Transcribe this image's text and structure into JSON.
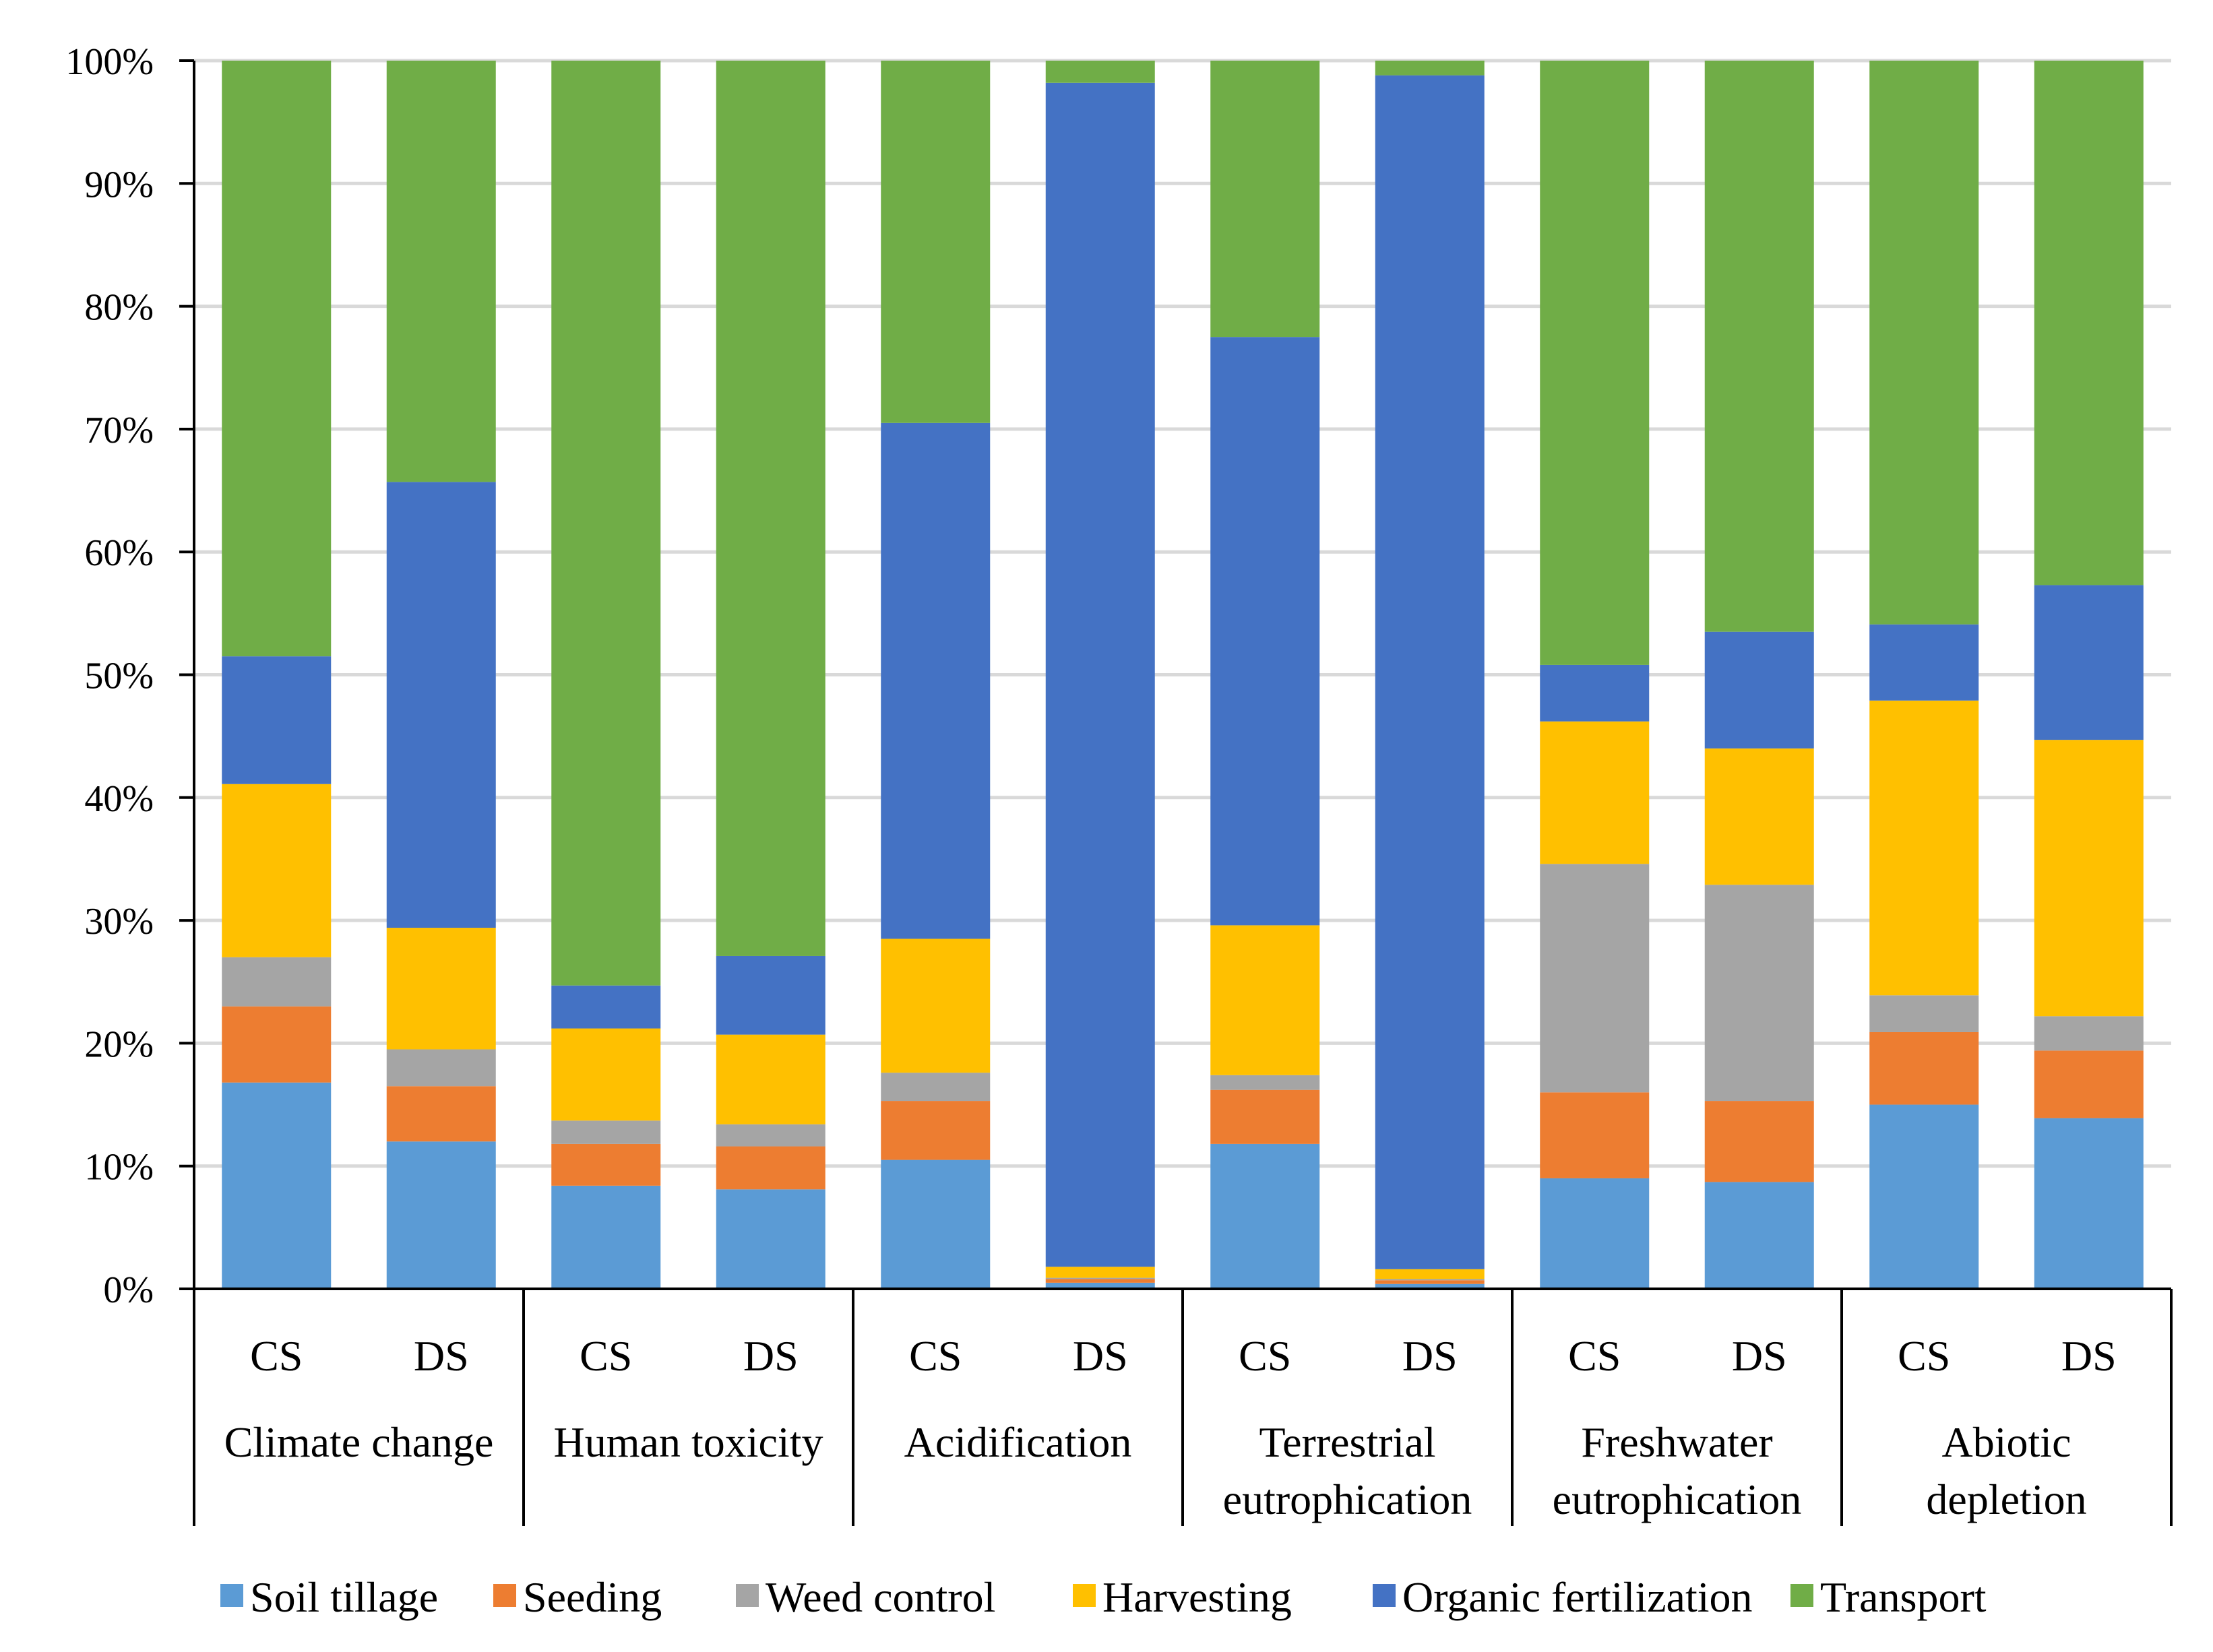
{
  "chart_data": {
    "type": "bar",
    "stacked": true,
    "normalized": true,
    "ylim": [
      0,
      100
    ],
    "yticks": [
      "0%",
      "10%",
      "20%",
      "30%",
      "40%",
      "50%",
      "60%",
      "70%",
      "80%",
      "90%",
      "100%"
    ],
    "grid": true,
    "legend_position": "bottom",
    "groups": [
      {
        "label": "Climate change",
        "categories": [
          "CS",
          "DS"
        ]
      },
      {
        "label": "Human toxicity",
        "categories": [
          "CS",
          "DS"
        ]
      },
      {
        "label": "Acidification",
        "categories": [
          "CS",
          "DS"
        ]
      },
      {
        "label": "Terrestrial eutrophication",
        "categories": [
          "CS",
          "DS"
        ]
      },
      {
        "label": "Freshwater eutrophication",
        "categories": [
          "CS",
          "DS"
        ]
      },
      {
        "label": "Abiotic depletion",
        "categories": [
          "CS",
          "DS"
        ]
      }
    ],
    "series": [
      {
        "name": "Soil tillage",
        "color": "#5B9BD5",
        "values": [
          16.8,
          12.0,
          8.4,
          8.1,
          10.5,
          0.5,
          11.8,
          0.4,
          9.0,
          8.7,
          15.0,
          13.9
        ]
      },
      {
        "name": "Seeding",
        "color": "#ED7D31",
        "values": [
          6.2,
          4.5,
          3.4,
          3.5,
          4.8,
          0.3,
          4.4,
          0.3,
          7.0,
          6.6,
          5.9,
          5.5
        ]
      },
      {
        "name": "Weed control",
        "color": "#A5A5A5",
        "values": [
          4.0,
          3.0,
          1.9,
          1.8,
          2.3,
          0.1,
          1.2,
          0.1,
          18.6,
          17.6,
          3.0,
          2.8
        ]
      },
      {
        "name": "Harvesting",
        "color": "#FFC000",
        "values": [
          14.1,
          9.9,
          7.5,
          7.3,
          10.9,
          0.9,
          12.2,
          0.8,
          11.6,
          11.1,
          24.0,
          22.5
        ]
      },
      {
        "name": "Organic fertilization",
        "color": "#4472C4",
        "values": [
          10.4,
          36.3,
          3.5,
          6.4,
          42.0,
          96.4,
          47.9,
          97.2,
          4.6,
          9.5,
          6.2,
          12.6
        ]
      },
      {
        "name": "Transport",
        "color": "#70AD47",
        "values": [
          48.5,
          34.3,
          75.3,
          72.9,
          29.5,
          1.8,
          22.5,
          1.2,
          49.2,
          46.5,
          45.9,
          42.7
        ]
      }
    ]
  },
  "legend": {
    "items": [
      "Soil tillage",
      "Seeding",
      "Weed control",
      "Harvesting",
      "Organic fertilization",
      "Transport"
    ]
  }
}
